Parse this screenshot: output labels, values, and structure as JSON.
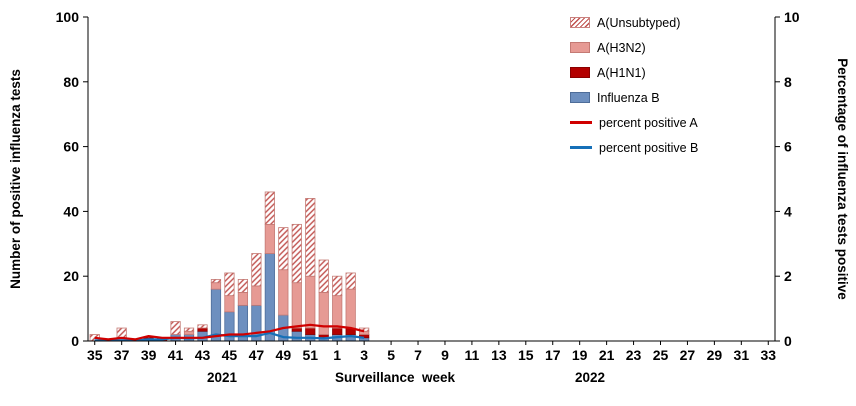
{
  "chart_data": {
    "type": "bar",
    "subtype": "stacked-bars-with-percent-lines",
    "title": "",
    "xlabel": "Surveillance  week",
    "ylabel_left": "Number of positive influenza tests",
    "ylabel_right": "Percentage of influenza tests positive",
    "year_labels": {
      "left": "2021",
      "right": "2022"
    },
    "left_axis": {
      "min": 0,
      "max": 100,
      "ticks": [
        0,
        20,
        40,
        60,
        80,
        100
      ]
    },
    "right_axis": {
      "min": 0,
      "max": 10,
      "ticks": [
        0,
        2,
        4,
        6,
        8,
        10
      ]
    },
    "x_weeks": [
      35,
      36,
      37,
      38,
      39,
      40,
      41,
      42,
      43,
      44,
      45,
      46,
      47,
      48,
      49,
      50,
      51,
      52,
      1,
      2,
      3,
      4,
      5,
      6,
      7,
      8,
      9,
      10,
      11,
      12,
      13,
      14,
      15,
      16,
      17,
      18,
      19,
      20,
      21,
      22,
      23,
      24,
      25,
      26,
      27,
      28,
      29,
      30,
      31,
      32,
      33
    ],
    "x_tick_labels": [
      35,
      37,
      39,
      41,
      43,
      45,
      47,
      49,
      51,
      1,
      3,
      5,
      7,
      9,
      11,
      13,
      15,
      17,
      19,
      21,
      23,
      25,
      27,
      29,
      31,
      33
    ],
    "bar_series": [
      {
        "name": "Influenza B",
        "color": "#6d8fbf",
        "stroke": "#4e6d99",
        "values": [
          0,
          0,
          0,
          0,
          0,
          0,
          2,
          2,
          3,
          16,
          9,
          11,
          11,
          27,
          8,
          3,
          2,
          1,
          2,
          2,
          1,
          0,
          0,
          0,
          0,
          0,
          0,
          0,
          0,
          0,
          0,
          0,
          0,
          0,
          0,
          0,
          0,
          0,
          0,
          0,
          0,
          0,
          0,
          0,
          0,
          0,
          0,
          0,
          0,
          0,
          0
        ]
      },
      {
        "name": "A(H1N1)",
        "color": "#b30000",
        "stroke": "#8a0000",
        "values": [
          0,
          0,
          0,
          0,
          1,
          1,
          0,
          0,
          1,
          0,
          0,
          0,
          0,
          0,
          0,
          1,
          2,
          1,
          2,
          2,
          1,
          0,
          0,
          0,
          0,
          0,
          0,
          0,
          0,
          0,
          0,
          0,
          0,
          0,
          0,
          0,
          0,
          0,
          0,
          0,
          0,
          0,
          0,
          0,
          0,
          0,
          0,
          0,
          0,
          0,
          0
        ]
      },
      {
        "name": "A(H3N2)",
        "color": "#e69a94",
        "stroke": "#c47a74",
        "values": [
          0,
          0,
          1,
          0,
          0,
          0,
          0,
          1,
          0,
          2,
          5,
          4,
          6,
          9,
          14,
          14,
          16,
          13,
          10,
          12,
          1,
          0,
          0,
          0,
          0,
          0,
          0,
          0,
          0,
          0,
          0,
          0,
          0,
          0,
          0,
          0,
          0,
          0,
          0,
          0,
          0,
          0,
          0,
          0,
          0,
          0,
          0,
          0,
          0,
          0,
          0
        ]
      },
      {
        "name": "A(Unsubtyped)",
        "color": "hatch",
        "stroke": "#c47a74",
        "values": [
          2,
          0,
          3,
          0,
          0,
          0,
          4,
          1,
          1,
          1,
          7,
          4,
          10,
          10,
          13,
          18,
          24,
          10,
          6,
          5,
          1,
          0,
          0,
          0,
          0,
          0,
          0,
          0,
          0,
          0,
          0,
          0,
          0,
          0,
          0,
          0,
          0,
          0,
          0,
          0,
          0,
          0,
          0,
          0,
          0,
          0,
          0,
          0,
          0,
          0,
          0
        ]
      }
    ],
    "line_series": [
      {
        "name": "percent positive A",
        "color": "#d00000",
        "axis": "right",
        "values": [
          0.1,
          0.05,
          0.1,
          0.05,
          0.15,
          0.1,
          0.1,
          0.1,
          0.1,
          0.15,
          0.2,
          0.2,
          0.25,
          0.3,
          0.4,
          0.45,
          0.5,
          0.45,
          0.45,
          0.4,
          0.3,
          null,
          null,
          null,
          null,
          null,
          null,
          null,
          null,
          null,
          null,
          null,
          null,
          null,
          null,
          null,
          null,
          null,
          null,
          null,
          null,
          null,
          null,
          null,
          null,
          null,
          null,
          null,
          null,
          null,
          null
        ]
      },
      {
        "name": "percent positive B",
        "color": "#1670b8",
        "axis": "right",
        "values": [
          0.02,
          0.02,
          0.02,
          0.02,
          0.05,
          0.05,
          0.1,
          0.08,
          0.1,
          0.2,
          0.15,
          0.15,
          0.15,
          0.25,
          0.12,
          0.1,
          0.1,
          0.08,
          0.12,
          0.15,
          0.1,
          null,
          null,
          null,
          null,
          null,
          null,
          null,
          null,
          null,
          null,
          null,
          null,
          null,
          null,
          null,
          null,
          null,
          null,
          null,
          null,
          null,
          null,
          null,
          null,
          null,
          null,
          null,
          null,
          null,
          null
        ]
      }
    ],
    "legend": [
      {
        "label": "A(Unsubtyped)"
      },
      {
        "label": "A(H3N2)"
      },
      {
        "label": "A(H1N1)"
      },
      {
        "label": "Influenza B"
      },
      {
        "label": "percent positive A"
      },
      {
        "label": "percent positive B"
      }
    ],
    "colors": {
      "flub": "#6d8fbf",
      "flub_border": "#4e6d99",
      "h1n1": "#b30000",
      "h1n1_border": "#8a0000",
      "h3n2": "#e69a94",
      "h3n2_border": "#c47a74",
      "hatch_line": "#c0504d",
      "hatch_border": "#c9827f",
      "lineA": "#d00000",
      "lineB": "#1670b8",
      "axis": "#000000"
    },
    "grid": "off",
    "legend_position": "top-right-inside"
  }
}
